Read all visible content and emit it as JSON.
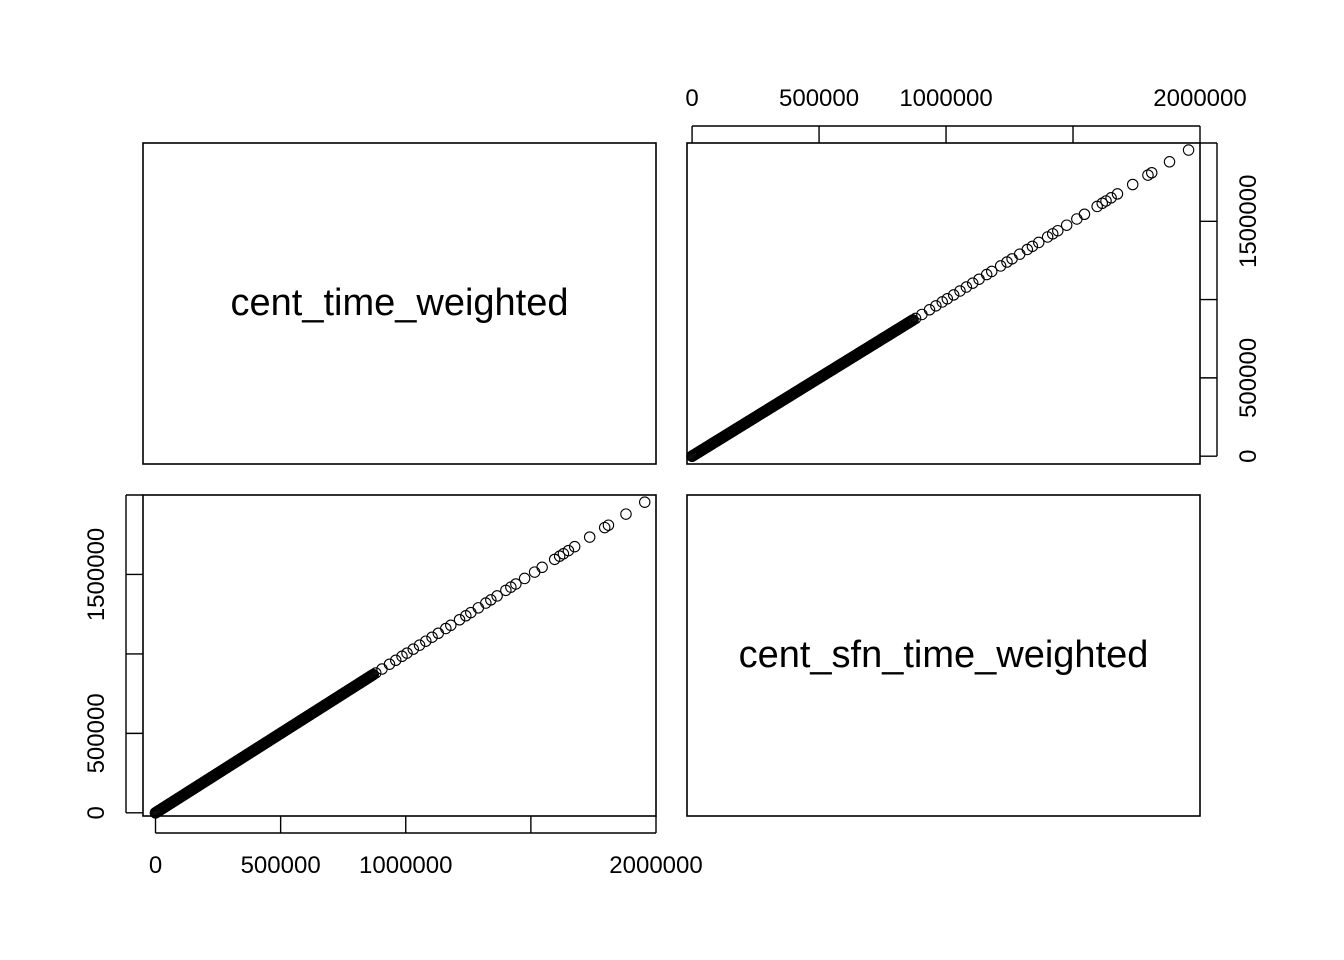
{
  "chart_data": {
    "type": "scatter",
    "layout": "pairs-matrix",
    "variables": [
      "cent_time_weighted",
      "cent_sfn_time_weighted"
    ],
    "axes": {
      "cent_time_weighted": {
        "range": [
          -50000,
          2000000
        ],
        "ticks": [
          0,
          500000,
          1000000,
          1500000,
          2000000
        ],
        "tick_labels": [
          "0",
          "500000",
          "1000000",
          "",
          "2000000"
        ]
      },
      "cent_sfn_time_weighted": {
        "range": [
          -20000,
          2000000
        ],
        "ticks": [
          0,
          500000,
          1000000,
          1500000,
          2000000
        ],
        "tick_labels": [
          "0",
          "500000",
          "",
          "1500000",
          ""
        ]
      }
    },
    "tick_sides": {
      "top": "upper-right",
      "right": "upper-right",
      "bottom": "lower-left",
      "left": "lower-left"
    },
    "points": [
      [
        0,
        0
      ],
      [
        1955000,
        1955000
      ],
      [
        1880000,
        1880000
      ],
      [
        1810000,
        1810000
      ],
      [
        1795000,
        1795000
      ],
      [
        1735000,
        1735000
      ],
      [
        1675000,
        1675000
      ],
      [
        1650000,
        1650000
      ],
      [
        1630000,
        1630000
      ],
      [
        1615000,
        1615000
      ],
      [
        1595000,
        1595000
      ],
      [
        1545000,
        1545000
      ],
      [
        1515000,
        1515000
      ],
      [
        1475000,
        1475000
      ],
      [
        1440000,
        1440000
      ],
      [
        1420000,
        1420000
      ],
      [
        1400000,
        1400000
      ],
      [
        1365000,
        1365000
      ],
      [
        1340000,
        1340000
      ],
      [
        1320000,
        1320000
      ],
      [
        1290000,
        1290000
      ],
      [
        1260000,
        1260000
      ],
      [
        1240000,
        1240000
      ],
      [
        1215000,
        1215000
      ],
      [
        1180000,
        1180000
      ],
      [
        1160000,
        1160000
      ],
      [
        1130000,
        1130000
      ],
      [
        1105000,
        1105000
      ],
      [
        1080000,
        1080000
      ],
      [
        1055000,
        1055000
      ],
      [
        1030000,
        1030000
      ],
      [
        1005000,
        1005000
      ],
      [
        985000,
        985000
      ],
      [
        960000,
        960000
      ],
      [
        935000,
        935000
      ],
      [
        905000,
        905000
      ],
      [
        880000,
        880000
      ]
    ],
    "dense_segment": {
      "from": 0,
      "to": 870000,
      "count": 240
    }
  }
}
